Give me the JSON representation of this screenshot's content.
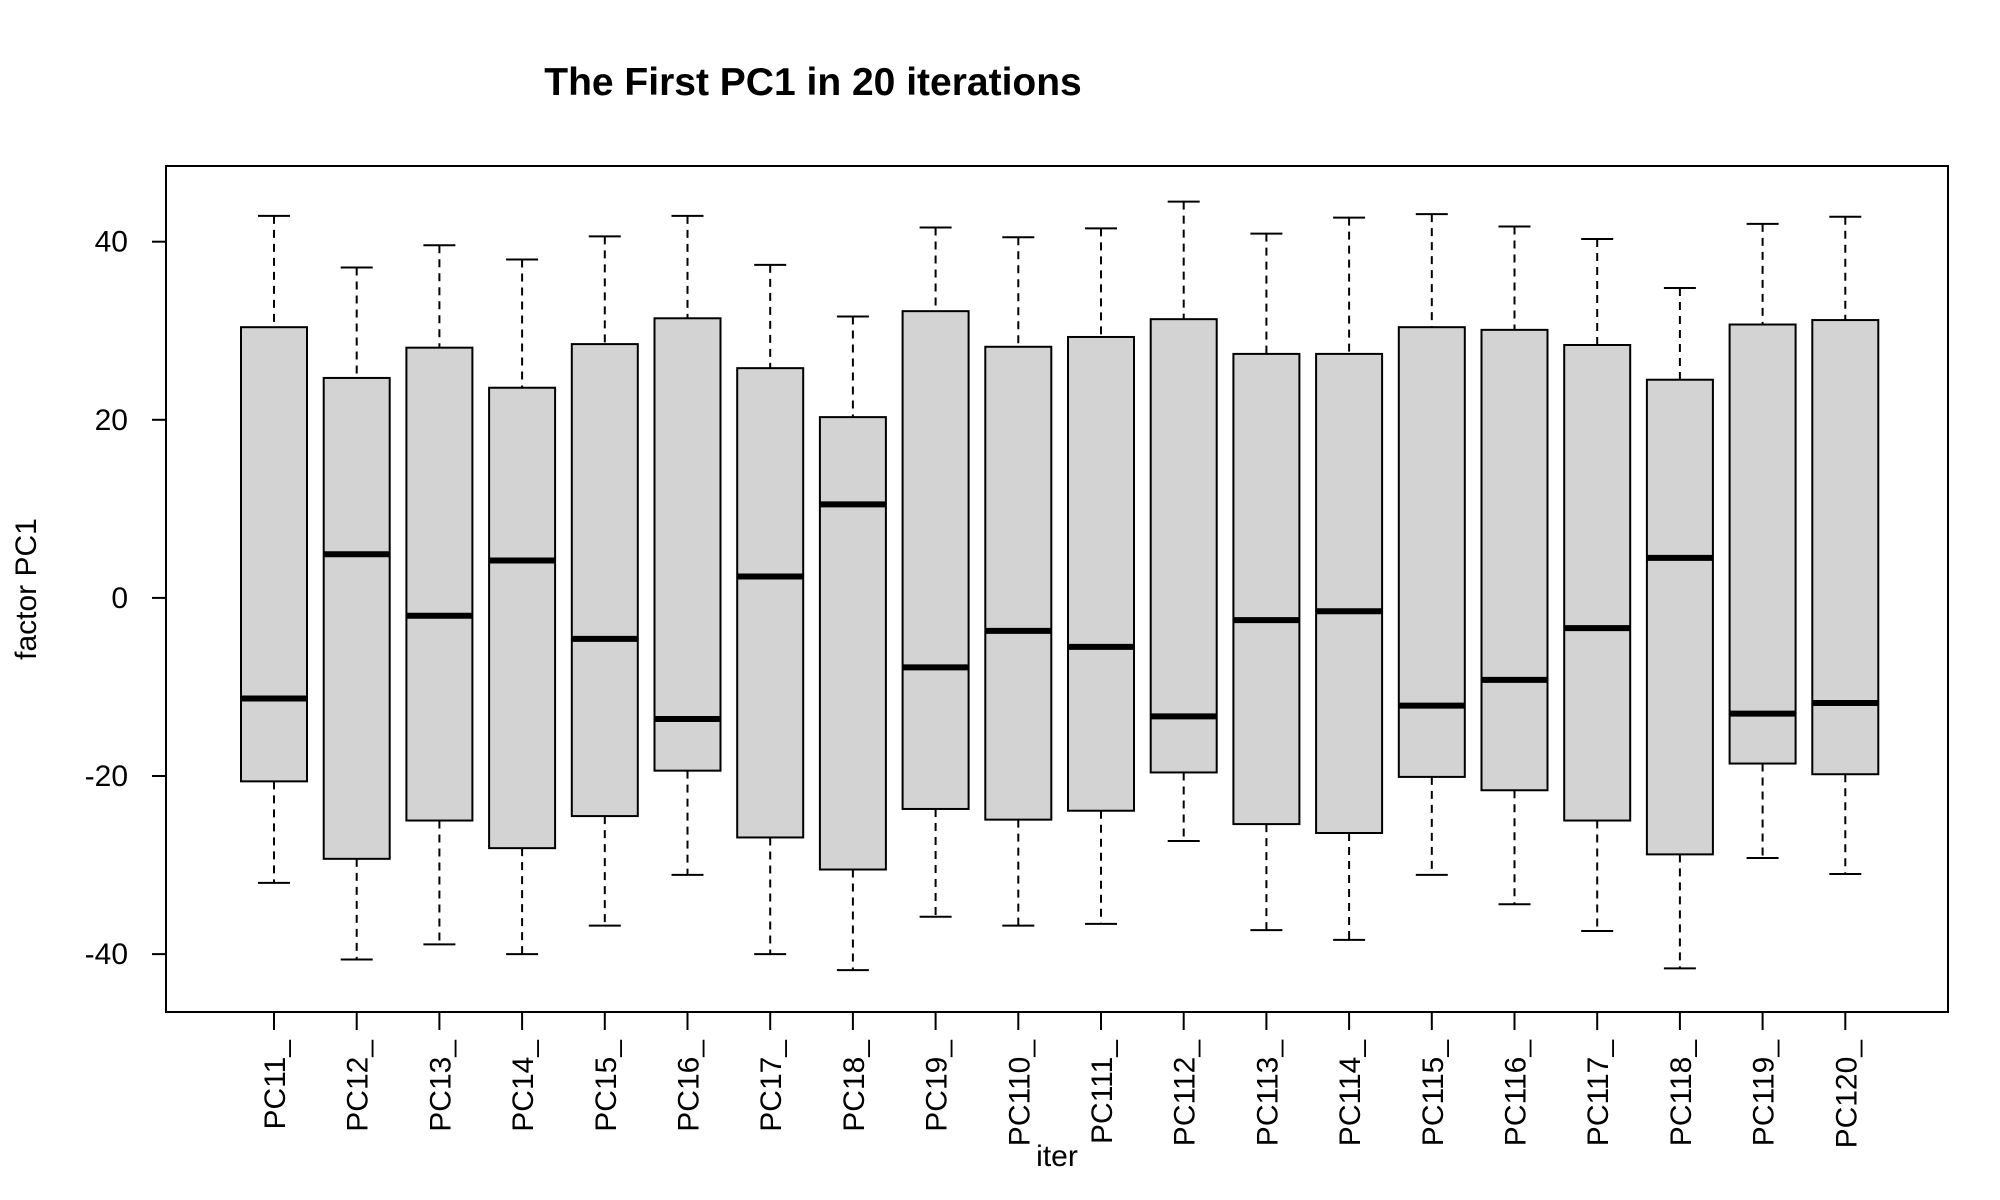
{
  "chart_data": {
    "type": "boxplot",
    "title": "The First PC1 in 20 iterations",
    "xlabel": "iter",
    "ylabel": "factor PC1",
    "ylim": [
      -46.5,
      48.5
    ],
    "yticks": [
      -40,
      -20,
      0,
      20,
      40
    ],
    "ytick_labels": [
      "-40",
      "-20",
      "0",
      "20",
      "40"
    ],
    "grid": false,
    "legend": "none",
    "box_fill": "#d3d3d3",
    "line_color": "#000000",
    "categories": [
      "PC11_",
      "PC12_",
      "PC13_",
      "PC14_",
      "PC15_",
      "PC16_",
      "PC17_",
      "PC18_",
      "PC19_",
      "PC110_",
      "PC111_",
      "PC112_",
      "PC113_",
      "PC114_",
      "PC115_",
      "PC116_",
      "PC117_",
      "PC118_",
      "PC119_",
      "PC120_"
    ],
    "boxes": [
      {
        "label": "PC11_",
        "min": -32.0,
        "q1": -20.6,
        "median": -11.3,
        "q3": 30.4,
        "max": 42.9
      },
      {
        "label": "PC12_",
        "min": -40.6,
        "q1": -29.3,
        "median": 4.9,
        "q3": 24.7,
        "max": 37.1
      },
      {
        "label": "PC13_",
        "min": -38.9,
        "q1": -25.0,
        "median": -2.0,
        "q3": 28.1,
        "max": 39.6
      },
      {
        "label": "PC14_",
        "min": -40.0,
        "q1": -28.1,
        "median": 4.2,
        "q3": 23.6,
        "max": 38.0
      },
      {
        "label": "PC15_",
        "min": -36.8,
        "q1": -24.5,
        "median": -4.6,
        "q3": 28.5,
        "max": 40.6
      },
      {
        "label": "PC16_",
        "min": -31.1,
        "q1": -19.4,
        "median": -13.6,
        "q3": 31.4,
        "max": 42.9
      },
      {
        "label": "PC17_",
        "min": -40.0,
        "q1": -26.9,
        "median": 2.4,
        "q3": 25.8,
        "max": 37.4
      },
      {
        "label": "PC18_",
        "min": -41.8,
        "q1": -30.5,
        "median": 10.5,
        "q3": 20.3,
        "max": 31.6
      },
      {
        "label": "PC19_",
        "min": -35.8,
        "q1": -23.7,
        "median": -7.8,
        "q3": 32.2,
        "max": 41.6
      },
      {
        "label": "PC110_",
        "min": -36.8,
        "q1": -24.9,
        "median": -3.7,
        "q3": 28.2,
        "max": 40.5
      },
      {
        "label": "PC111_",
        "min": -36.6,
        "q1": -23.9,
        "median": -5.5,
        "q3": 29.3,
        "max": 41.5
      },
      {
        "label": "PC112_",
        "min": -27.3,
        "q1": -19.6,
        "median": -13.3,
        "q3": 31.3,
        "max": 44.5
      },
      {
        "label": "PC113_",
        "min": -37.3,
        "q1": -25.4,
        "median": -2.5,
        "q3": 27.4,
        "max": 40.9
      },
      {
        "label": "PC114_",
        "min": -38.4,
        "q1": -26.4,
        "median": -1.5,
        "q3": 27.4,
        "max": 42.7
      },
      {
        "label": "PC115_",
        "min": -31.1,
        "q1": -20.1,
        "median": -12.1,
        "q3": 30.4,
        "max": 43.1
      },
      {
        "label": "PC116_",
        "min": -34.4,
        "q1": -21.6,
        "median": -9.2,
        "q3": 30.1,
        "max": 41.7
      },
      {
        "label": "PC117_",
        "min": -37.4,
        "q1": -25.0,
        "median": -3.4,
        "q3": 28.4,
        "max": 40.3
      },
      {
        "label": "PC118_",
        "min": -41.6,
        "q1": -28.8,
        "median": 4.5,
        "q3": 24.5,
        "max": 34.8
      },
      {
        "label": "PC119_",
        "min": -29.2,
        "q1": -18.6,
        "median": -13.0,
        "q3": 30.7,
        "max": 42.0
      },
      {
        "label": "PC120_",
        "min": -31.0,
        "q1": -19.8,
        "median": -11.8,
        "q3": 31.2,
        "max": 42.8
      }
    ]
  }
}
